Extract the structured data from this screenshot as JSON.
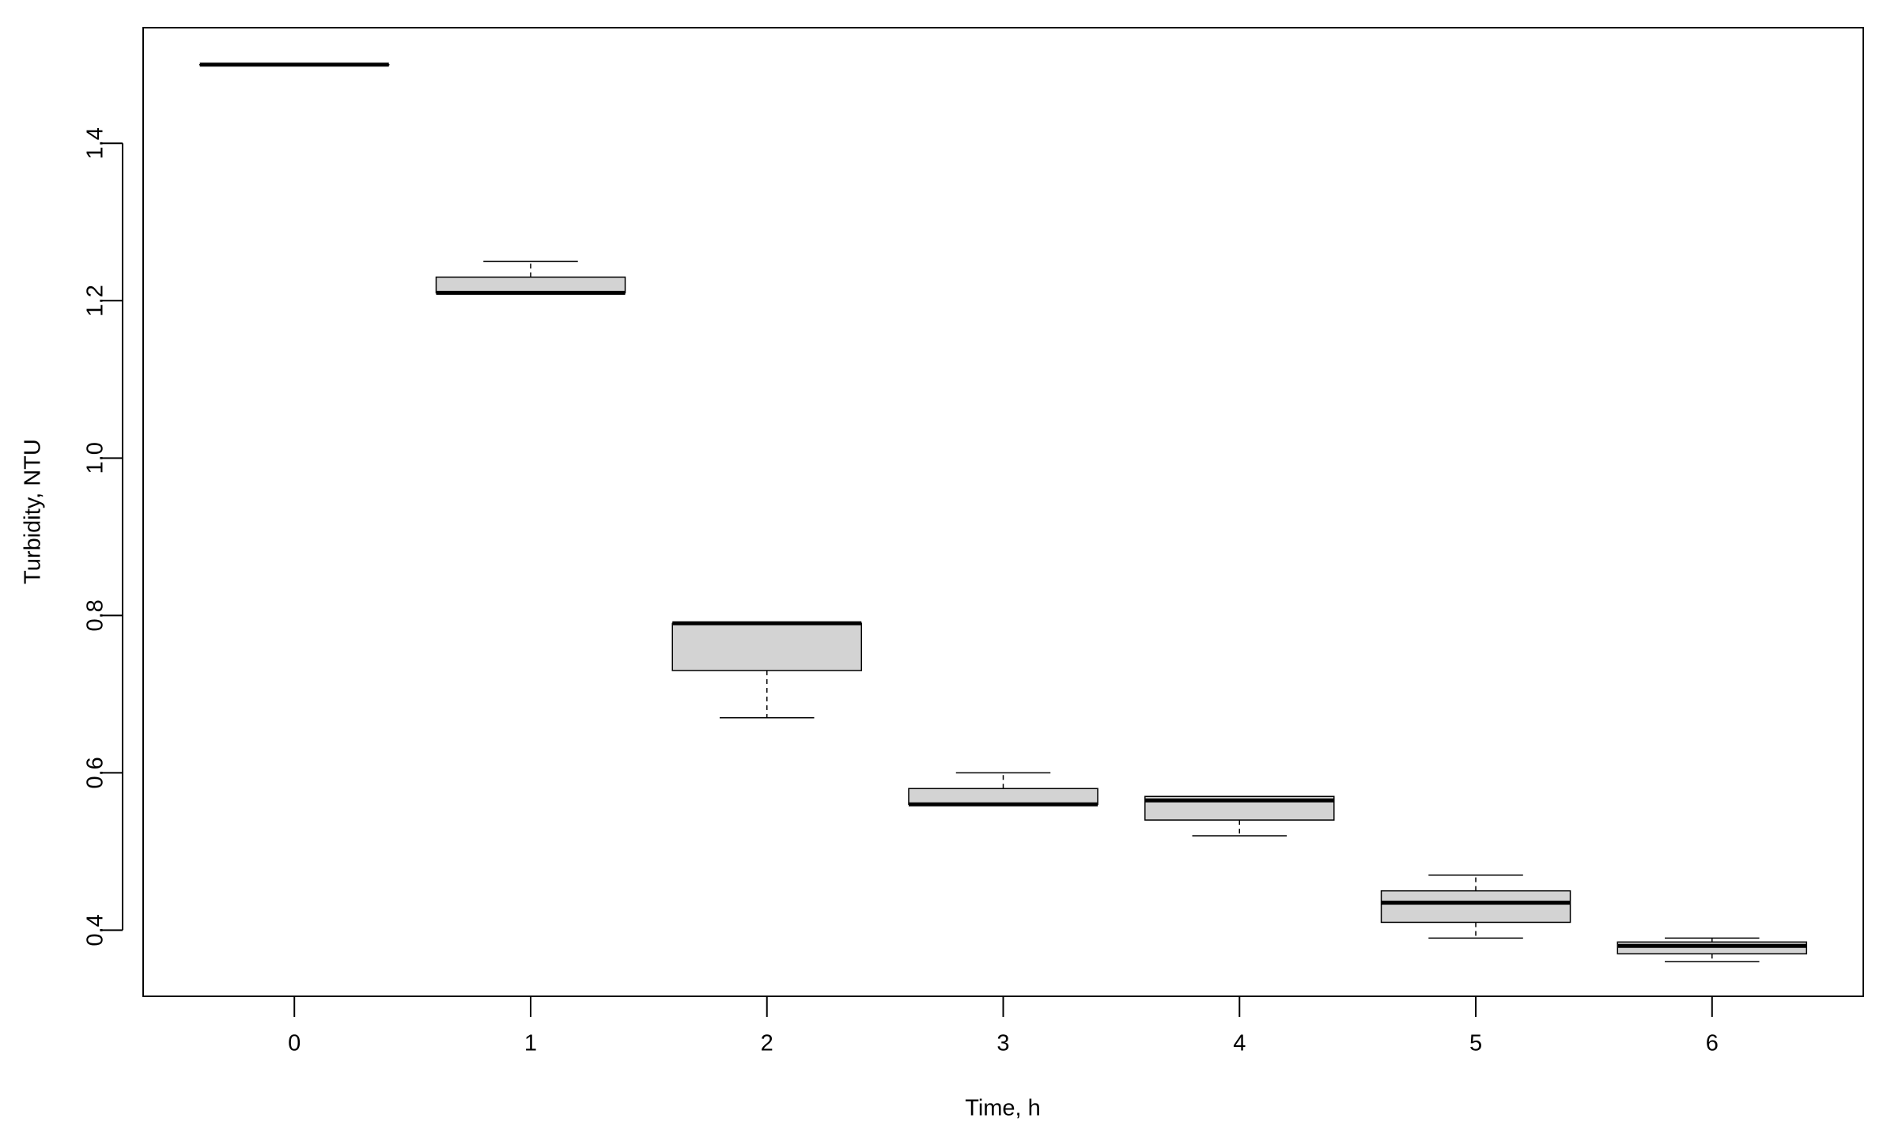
{
  "chart_data": {
    "type": "box",
    "x_label": "Time, h",
    "y_label": "Turbidity, NTU",
    "categories": [
      "0",
      "1",
      "2",
      "3",
      "4",
      "5",
      "6"
    ],
    "min": [
      1.5,
      1.21,
      0.67,
      0.56,
      0.52,
      0.39,
      0.36
    ],
    "q1": [
      1.5,
      1.21,
      0.73,
      0.56,
      0.54,
      0.41,
      0.37
    ],
    "median": [
      1.5,
      1.21,
      0.79,
      0.56,
      0.565,
      0.435,
      0.38
    ],
    "q3": [
      1.5,
      1.23,
      0.79,
      0.58,
      0.57,
      0.45,
      0.385
    ],
    "max": [
      1.5,
      1.25,
      0.79,
      0.6,
      0.57,
      0.47,
      0.39
    ],
    "color": "#d3d3d3",
    "ylim": [
      0.316,
      1.547
    ],
    "yticks": [
      0.4,
      0.6,
      0.8,
      {
        "value": 1,
        "label": "1.0"
      },
      1.2,
      1.4
    ]
  }
}
